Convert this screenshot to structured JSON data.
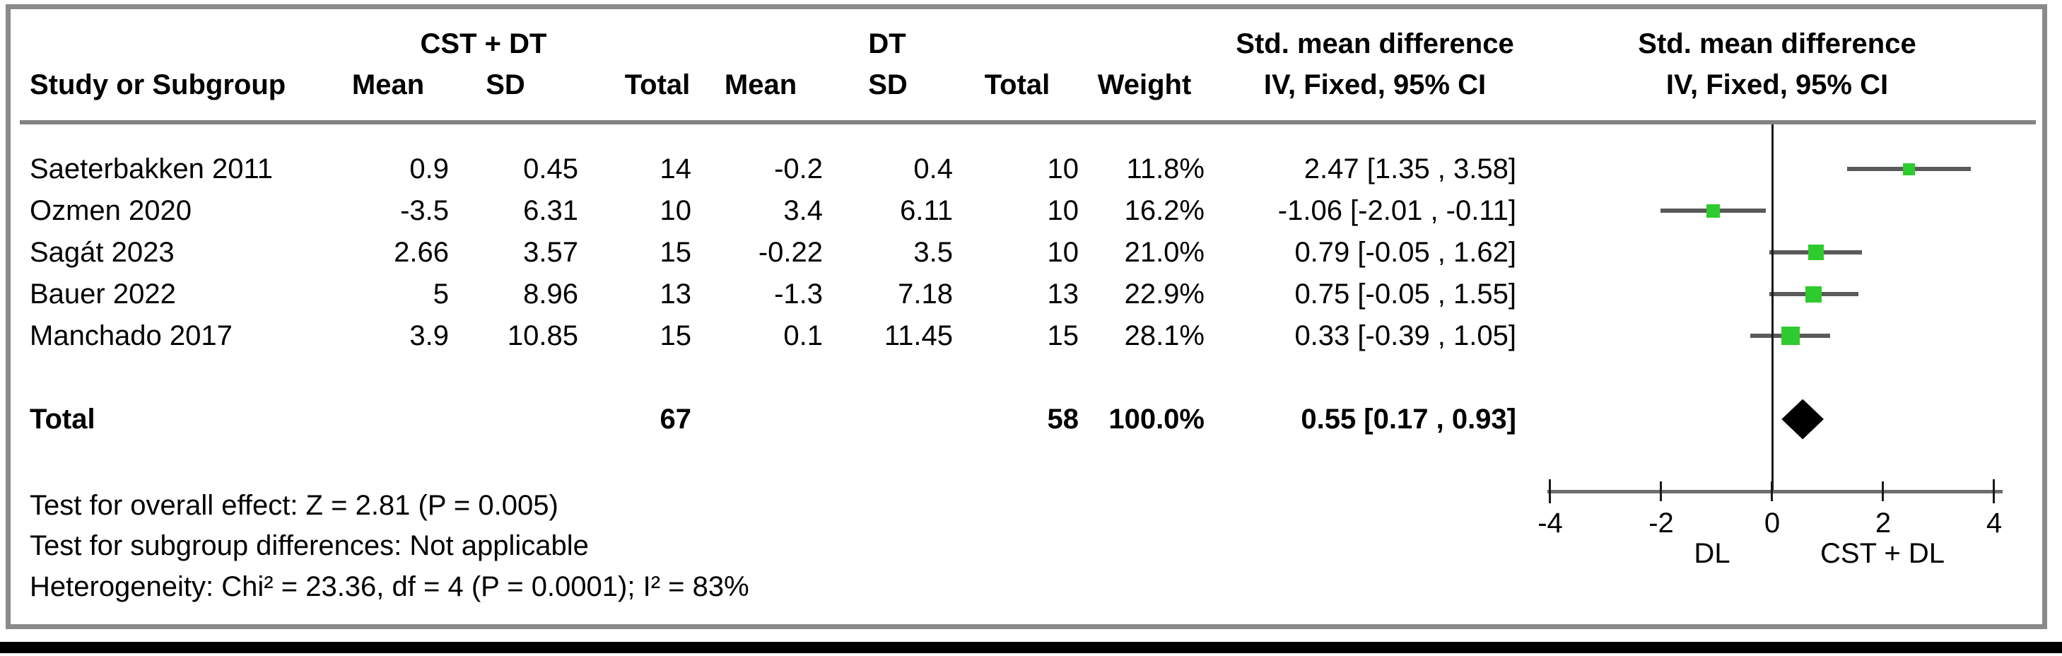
{
  "header": {
    "group1": "CST + DT",
    "group2": "DT",
    "smd_text_col_title": "Std. mean difference",
    "smd_plot_col_title": "Std. mean difference",
    "iv_text_col_subtitle": "IV, Fixed, 95% CI",
    "iv_plot_col_subtitle": "IV, Fixed, 95% CI",
    "study_or_subgroup": "Study or Subgroup",
    "mean1": "Mean",
    "sd1": "SD",
    "total1": "Total",
    "mean2": "Mean",
    "sd2": "SD",
    "total2": "Total",
    "weight": "Weight"
  },
  "rows": [
    {
      "study": "Saeterbakken 2011",
      "mean1": "0.9",
      "sd1": "0.45",
      "n1": "14",
      "mean2": "-0.2",
      "sd2": "0.4",
      "n2": "10",
      "weight": "11.8%",
      "weight_pct": 11.8,
      "ci_text": "2.47 [1.35 , 3.58]",
      "est": 2.47,
      "lo": 1.35,
      "hi": 3.58
    },
    {
      "study": "Ozmen 2020",
      "mean1": "-3.5",
      "sd1": "6.31",
      "n1": "10",
      "mean2": "3.4",
      "sd2": "6.11",
      "n2": "10",
      "weight": "16.2%",
      "weight_pct": 16.2,
      "ci_text": "-1.06 [-2.01 , -0.11]",
      "est": -1.06,
      "lo": -2.01,
      "hi": -0.11
    },
    {
      "study": "Sagát 2023",
      "mean1": "2.66",
      "sd1": "3.57",
      "n1": "15",
      "mean2": "-0.22",
      "sd2": "3.5",
      "n2": "10",
      "weight": "21.0%",
      "weight_pct": 21.0,
      "ci_text": "0.79 [-0.05 , 1.62]",
      "est": 0.79,
      "lo": -0.05,
      "hi": 1.62
    },
    {
      "study": "Bauer 2022",
      "mean1": "5",
      "sd1": "8.96",
      "n1": "13",
      "mean2": "-1.3",
      "sd2": "7.18",
      "n2": "13",
      "weight": "22.9%",
      "weight_pct": 22.9,
      "ci_text": "0.75 [-0.05 , 1.55]",
      "est": 0.75,
      "lo": -0.05,
      "hi": 1.55
    },
    {
      "study": "Manchado 2017",
      "mean1": "3.9",
      "sd1": "10.85",
      "n1": "15",
      "mean2": "0.1",
      "sd2": "11.45",
      "n2": "15",
      "weight": "28.1%",
      "weight_pct": 28.1,
      "ci_text": "0.33 [-0.39 , 1.05]",
      "est": 0.33,
      "lo": -0.39,
      "hi": 1.05
    }
  ],
  "total_row": {
    "label": "Total",
    "n1": "67",
    "n2": "58",
    "weight": "100.0%",
    "ci_text": "0.55 [0.17 , 0.93]",
    "est": 0.55,
    "lo": 0.17,
    "hi": 0.93
  },
  "footer": {
    "line1": "Test for overall effect: Z = 2.81 (P = 0.005)",
    "line2": "Test for subgroup differences: Not applicable",
    "line3": "Heterogeneity: Chi² = 23.36, df = 4 (P = 0.0001); I² = 83%"
  },
  "axis": {
    "ticks": [
      "-4",
      "-2",
      "0",
      "2",
      "4"
    ],
    "tick_values": [
      -4,
      -2,
      0,
      2,
      4
    ],
    "left_label": "DL",
    "right_label": "CST + DL"
  },
  "colors": {
    "square_green": "#2ECB2E",
    "ci_line_gray": "#5a5a5a",
    "axis_gray": "#6e6e6e",
    "border_gray": "#8a8a8a",
    "diamond_black": "#000000"
  },
  "chart_data": {
    "type": "scatter",
    "subtype": "forest-plot",
    "title": "Std. mean difference, IV, Fixed, 95% CI",
    "xlabel_left": "DL",
    "xlabel_right": "CST + DL",
    "xlim": [
      -4,
      4
    ],
    "xticks": [
      -4,
      -2,
      0,
      2,
      4
    ],
    "grid": false,
    "studies": [
      {
        "name": "Saeterbakken 2011",
        "group1_mean": 0.9,
        "group1_sd": 0.45,
        "group1_n": 14,
        "group2_mean": -0.2,
        "group2_sd": 0.4,
        "group2_n": 10,
        "weight_pct": 11.8,
        "smd": 2.47,
        "ci_low": 1.35,
        "ci_high": 3.58
      },
      {
        "name": "Ozmen 2020",
        "group1_mean": -3.5,
        "group1_sd": 6.31,
        "group1_n": 10,
        "group2_mean": 3.4,
        "group2_sd": 6.11,
        "group2_n": 10,
        "weight_pct": 16.2,
        "smd": -1.06,
        "ci_low": -2.01,
        "ci_high": -0.11
      },
      {
        "name": "Sagát 2023",
        "group1_mean": 2.66,
        "group1_sd": 3.57,
        "group1_n": 15,
        "group2_mean": -0.22,
        "group2_sd": 3.5,
        "group2_n": 10,
        "weight_pct": 21.0,
        "smd": 0.79,
        "ci_low": -0.05,
        "ci_high": 1.62
      },
      {
        "name": "Bauer 2022",
        "group1_mean": 5,
        "group1_sd": 8.96,
        "group1_n": 13,
        "group2_mean": -1.3,
        "group2_sd": 7.18,
        "group2_n": 13,
        "weight_pct": 22.9,
        "smd": 0.75,
        "ci_low": -0.05,
        "ci_high": 1.55
      },
      {
        "name": "Manchado 2017",
        "group1_mean": 3.9,
        "group1_sd": 10.85,
        "group1_n": 15,
        "group2_mean": 0.1,
        "group2_sd": 11.45,
        "group2_n": 15,
        "weight_pct": 28.1,
        "smd": 0.33,
        "ci_low": -0.39,
        "ci_high": 1.05
      }
    ],
    "total": {
      "group1_n": 67,
      "group2_n": 58,
      "weight_pct": 100.0,
      "smd": 0.55,
      "ci_low": 0.17,
      "ci_high": 0.93
    },
    "tests": [
      "Test for overall effect: Z = 2.81 (P = 0.005)",
      "Test for subgroup differences: Not applicable",
      "Heterogeneity: Chi² = 23.36, df = 4 (P = 0.0001); I² = 83%"
    ]
  }
}
